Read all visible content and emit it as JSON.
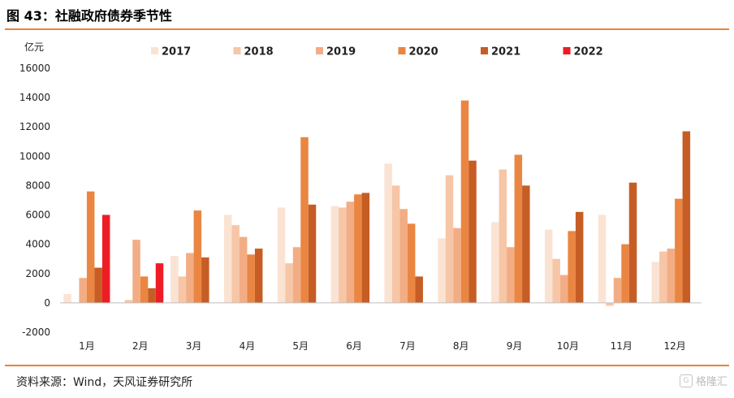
{
  "figure": {
    "title": "图 43：社融政府债券季节性",
    "source": "资料来源：Wind，天风证券研究所",
    "watermark": "格隆汇"
  },
  "colors": {
    "accent_rule": "#E8833A",
    "series": [
      "#FBE3D3",
      "#F6C6A6",
      "#F2AD85",
      "#EA8642",
      "#C65D25",
      "#EE1C25"
    ]
  },
  "chart_data": {
    "type": "bar",
    "unit_label": "亿元",
    "categories": [
      "1月",
      "2月",
      "3月",
      "4月",
      "5月",
      "6月",
      "7月",
      "8月",
      "9月",
      "10月",
      "11月",
      "12月"
    ],
    "series": [
      {
        "name": "2017",
        "values": [
          600,
          0,
          3200,
          6000,
          6500,
          6600,
          9500,
          4400,
          5500,
          5000,
          6000,
          2800
        ]
      },
      {
        "name": "2018",
        "values": [
          0,
          200,
          1800,
          5300,
          2700,
          6500,
          8000,
          8700,
          9100,
          3000,
          -200,
          3500
        ]
      },
      {
        "name": "2019",
        "values": [
          1700,
          4300,
          3400,
          4500,
          3800,
          6900,
          6400,
          5100,
          3800,
          1900,
          1700,
          3700
        ]
      },
      {
        "name": "2020",
        "values": [
          7600,
          1800,
          6300,
          3300,
          11300,
          7400,
          5400,
          13800,
          10100,
          4900,
          4000,
          7100
        ]
      },
      {
        "name": "2021",
        "values": [
          2400,
          1000,
          3100,
          3700,
          6700,
          7500,
          1800,
          9700,
          8000,
          6200,
          8200,
          11700
        ]
      },
      {
        "name": "2022",
        "values": [
          6000,
          2700,
          null,
          null,
          null,
          null,
          null,
          null,
          null,
          null,
          null,
          null
        ]
      }
    ],
    "ylim": [
      -2000,
      16000
    ],
    "yticks": [
      -2000,
      0,
      2000,
      4000,
      6000,
      8000,
      10000,
      12000,
      14000,
      16000
    ],
    "grid": false,
    "legend_position": "top"
  }
}
